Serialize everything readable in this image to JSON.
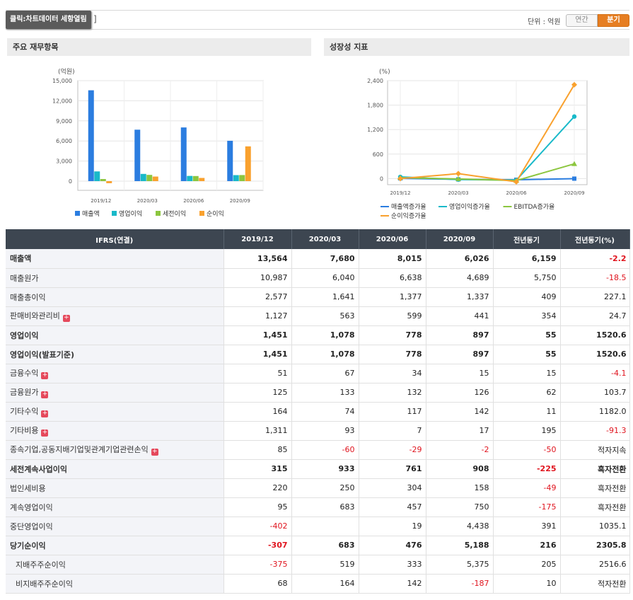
{
  "topbar": {
    "chart_toggle": "클릭:차트데이터 세항열림",
    "bracket": "]",
    "unit_label": "단위 : 억원",
    "tab_annual": "연간",
    "tab_quarter": "분기"
  },
  "left_panel": {
    "title": "주요 재무항목",
    "unit": "(억원)",
    "legend": [
      "매출액",
      "영업이익",
      "세전이익",
      "순이익"
    ]
  },
  "right_panel": {
    "title": "성장성 지표",
    "unit": "(%)",
    "legend": [
      "매출액증가율",
      "영업이익증가율",
      "EBITDA증가율",
      "순이익증가율"
    ]
  },
  "colors": {
    "bar1": "#2b7de0",
    "bar2": "#19b9c9",
    "bar3": "#8cc63f",
    "bar4": "#f9a12e",
    "line1": "#2b7de0",
    "line2": "#19b9c9",
    "line3": "#8cc63f",
    "line4": "#f9a12e",
    "header_bg": "#3d4651",
    "negative": "#e0141e",
    "accent": "#e67e22"
  },
  "chart_data": [
    {
      "type": "bar",
      "categories": [
        "2019/12",
        "2020/03",
        "2020/06",
        "2020/09"
      ],
      "series": [
        {
          "name": "매출액",
          "values": [
            13564,
            7680,
            8015,
            6026
          ]
        },
        {
          "name": "영업이익",
          "values": [
            1451,
            1078,
            778,
            897
          ]
        },
        {
          "name": "세전이익",
          "values": [
            315,
            933,
            761,
            908
          ]
        },
        {
          "name": "순이익",
          "values": [
            -307,
            683,
            476,
            5188
          ]
        }
      ],
      "ylabel": "(억원)",
      "yticks": [
        "15,000",
        "12,000",
        "9,000",
        "6,000",
        "3,000",
        "0"
      ],
      "ylim": [
        -1000,
        15000
      ],
      "grid": true,
      "legend": "bottom"
    },
    {
      "type": "line",
      "categories": [
        "2019/12",
        "2020/03",
        "2020/06",
        "2020/09"
      ],
      "series": [
        {
          "name": "매출액증가율",
          "values": [
            5,
            -20,
            -30,
            -2
          ]
        },
        {
          "name": "영업이익증가율",
          "values": [
            40,
            -25,
            -40,
            1520
          ]
        },
        {
          "name": "EBITDA증가율",
          "values": [
            20,
            -10,
            -50,
            360
          ]
        },
        {
          "name": "순이익증가율",
          "values": [
            0,
            120,
            -80,
            2300
          ]
        }
      ],
      "ylabel": "(%)",
      "yticks": [
        "2,400",
        "1,800",
        "1,200",
        "600",
        "0"
      ],
      "ylim": [
        -150,
        2400
      ],
      "grid": true,
      "legend": "bottom"
    }
  ],
  "table": {
    "headers": [
      "IFRS(연결)",
      "2019/12",
      "2020/03",
      "2020/06",
      "2020/09",
      "전년동기",
      "전년동기(%)"
    ],
    "rows": [
      {
        "label": "매출액",
        "values": [
          "13,564",
          "7,680",
          "8,015",
          "6,026",
          "6,159",
          "-2.2"
        ]
      },
      {
        "label": "매출원가",
        "values": [
          "10,987",
          "6,040",
          "6,638",
          "4,689",
          "5,750",
          "-18.5"
        ]
      },
      {
        "label": "매출총이익",
        "values": [
          "2,577",
          "1,641",
          "1,377",
          "1,337",
          "409",
          "227.1"
        ]
      },
      {
        "label": "판매비와관리비",
        "values": [
          "1,127",
          "563",
          "599",
          "441",
          "354",
          "24.7"
        ]
      },
      {
        "label": "영업이익",
        "values": [
          "1,451",
          "1,078",
          "778",
          "897",
          "55",
          "1520.6"
        ]
      },
      {
        "label": "영업이익(발표기준)",
        "values": [
          "1,451",
          "1,078",
          "778",
          "897",
          "55",
          "1520.6"
        ]
      },
      {
        "label": "금융수익",
        "values": [
          "51",
          "67",
          "34",
          "15",
          "15",
          "-4.1"
        ]
      },
      {
        "label": "금융원가",
        "values": [
          "125",
          "133",
          "132",
          "126",
          "62",
          "103.7"
        ]
      },
      {
        "label": "기타수익",
        "values": [
          "164",
          "74",
          "117",
          "142",
          "11",
          "1182.0"
        ]
      },
      {
        "label": "기타비용",
        "values": [
          "1,311",
          "93",
          "7",
          "17",
          "195",
          "-91.3"
        ]
      },
      {
        "label": "종속기업,공동지배기업및관계기업관련손익",
        "values": [
          "85",
          "-60",
          "-29",
          "-2",
          "-50",
          "적자지속"
        ]
      },
      {
        "label": "세전계속사업이익",
        "values": [
          "315",
          "933",
          "761",
          "908",
          "-225",
          "흑자전환"
        ]
      },
      {
        "label": "법인세비용",
        "values": [
          "220",
          "250",
          "304",
          "158",
          "-49",
          "흑자전환"
        ]
      },
      {
        "label": "계속영업이익",
        "values": [
          "95",
          "683",
          "457",
          "750",
          "-175",
          "흑자전환"
        ]
      },
      {
        "label": "중단영업이익",
        "values": [
          "-402",
          "",
          "19",
          "4,438",
          "391",
          "1035.1"
        ]
      },
      {
        "label": "당기순이익",
        "values": [
          "-307",
          "683",
          "476",
          "5,188",
          "216",
          "2305.8"
        ]
      },
      {
        "label": "지배주주순이익",
        "values": [
          "-375",
          "519",
          "333",
          "5,375",
          "205",
          "2516.6"
        ]
      },
      {
        "label": "비지배주주순이익",
        "values": [
          "68",
          "164",
          "142",
          "-187",
          "10",
          "적자전환"
        ]
      }
    ]
  }
}
